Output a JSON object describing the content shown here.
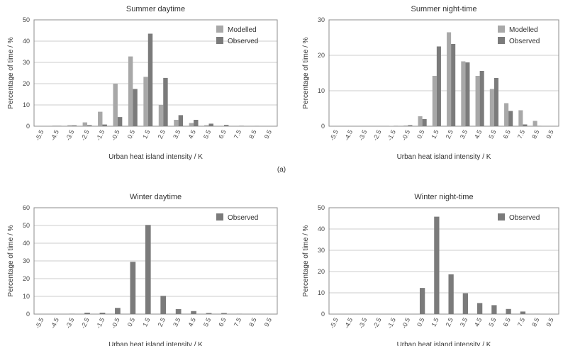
{
  "caption": "(a)",
  "colors": {
    "modelled": "#a8a8a8",
    "observed": "#7b7b7b",
    "grid": "#cccccc",
    "axis": "#8c8c8c"
  },
  "chart_data": [
    {
      "type": "bar",
      "title": "Summer daytime",
      "xlabel": "Urban heat island intensity / K",
      "ylabel": "Percentage of time / %",
      "categories": [
        "-5.5",
        "-4.5",
        "-3.5",
        "-2.5",
        "-1.5",
        "-0.5",
        "0.5",
        "1.5",
        "2.5",
        "3.5",
        "4.5",
        "5.5",
        "6.5",
        "7.5",
        "8.5",
        "9.5"
      ],
      "ylim": [
        0,
        50
      ],
      "yticks": [
        0,
        10,
        20,
        30,
        40,
        50
      ],
      "grid": true,
      "legend": "top-right",
      "series": [
        {
          "name": "Modelled",
          "values": [
            0,
            0.3,
            0.5,
            1.8,
            6.8,
            20,
            32.8,
            23.2,
            10,
            3,
            1.5,
            0.5,
            0,
            0,
            0,
            0
          ]
        },
        {
          "name": "Observed",
          "values": [
            0,
            0.2,
            0.4,
            0.5,
            0.8,
            4.3,
            17.5,
            43.5,
            22.7,
            5.2,
            3,
            1.2,
            0.6,
            0.2,
            0.1,
            0
          ]
        }
      ]
    },
    {
      "type": "bar",
      "title": "Summer night-time",
      "xlabel": "Urban heat island intensity / K",
      "ylabel": "Percentage of time / %",
      "categories": [
        "-5.5",
        "-4.5",
        "-3.5",
        "-2.5",
        "-1.5",
        "-0.5",
        "0.5",
        "1.5",
        "2.5",
        "3.5",
        "4.5",
        "5.5",
        "6.5",
        "7.5",
        "8.5",
        "9.5"
      ],
      "ylim": [
        0,
        30
      ],
      "yticks": [
        0,
        10,
        20,
        30
      ],
      "grid": true,
      "legend": "top-right",
      "series": [
        {
          "name": "Modelled",
          "values": [
            0,
            0,
            0,
            0,
            0.1,
            0.2,
            2.8,
            14.2,
            26.5,
            18.3,
            14.2,
            10.5,
            6.5,
            4.5,
            1.5,
            0
          ]
        },
        {
          "name": "Observed",
          "values": [
            0,
            0,
            0,
            0,
            0.1,
            0.3,
            2,
            22.5,
            23.2,
            18,
            15.6,
            13.6,
            4.3,
            0.5,
            0.1,
            0
          ]
        }
      ]
    },
    {
      "type": "bar",
      "title": "Winter daytime",
      "xlabel": "Urban heat island intensity / K",
      "ylabel": "Percentage of time / %",
      "categories": [
        "-5.5",
        "-4.5",
        "-3.5",
        "-2.5",
        "-1.5",
        "-0.5",
        "0.5",
        "1.5",
        "2.5",
        "3.5",
        "4.5",
        "5.5",
        "6.5",
        "7.5",
        "8.5",
        "9.5"
      ],
      "ylim": [
        0,
        60
      ],
      "yticks": [
        0,
        10,
        20,
        30,
        40,
        50,
        60
      ],
      "grid": true,
      "legend": "top-right",
      "series": [
        {
          "name": "Observed",
          "values": [
            0,
            0,
            0.2,
            0.8,
            0.8,
            3.5,
            29.5,
            50.3,
            10.3,
            2.8,
            1.7,
            0.6,
            0.6,
            0.2,
            0,
            0
          ]
        }
      ]
    },
    {
      "type": "bar",
      "title": "Winter night-time",
      "xlabel": "Urban heat island intensity / K",
      "ylabel": "Percentage of time / %",
      "categories": [
        "-5.5",
        "-4.5",
        "-3.5",
        "-2.5",
        "-1.5",
        "-0.5",
        "0.5",
        "1.5",
        "2.5",
        "3.5",
        "4.5",
        "5.5",
        "6.5",
        "7.5",
        "8.5",
        "9.5"
      ],
      "ylim": [
        0,
        50
      ],
      "yticks": [
        0,
        10,
        20,
        30,
        40,
        50
      ],
      "grid": true,
      "legend": "top-right",
      "series": [
        {
          "name": "Observed",
          "values": [
            0,
            0,
            0,
            0,
            0,
            0,
            12.3,
            45.8,
            18.7,
            9.8,
            5.2,
            4.2,
            2.4,
            1.2,
            0.1,
            0
          ]
        }
      ]
    }
  ]
}
